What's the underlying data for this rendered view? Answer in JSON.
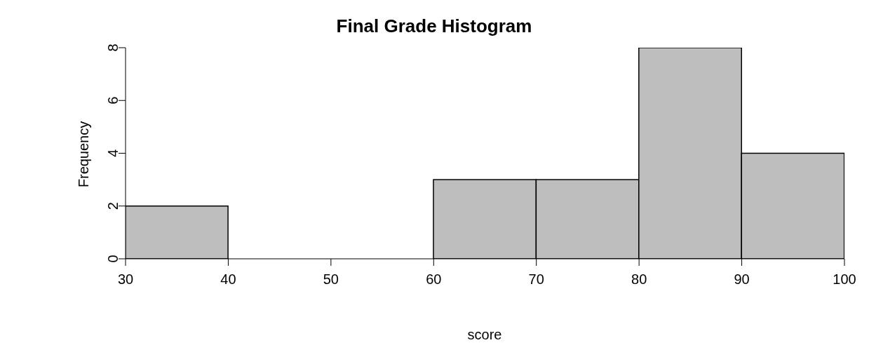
{
  "chart_data": {
    "type": "histogram",
    "title": "Final Grade Histogram",
    "xlabel": "score",
    "ylabel": "Frequency",
    "bins": [
      30,
      40,
      50,
      60,
      70,
      80,
      90,
      100
    ],
    "values": [
      2,
      0,
      0,
      3,
      3,
      8,
      4
    ],
    "color": "#bebebe",
    "xlim": [
      30,
      100
    ],
    "xticks": [
      30,
      40,
      50,
      60,
      70,
      80,
      90,
      100
    ],
    "ylim": [
      0,
      8
    ],
    "yticks": [
      0,
      2,
      4,
      6,
      8
    ]
  }
}
